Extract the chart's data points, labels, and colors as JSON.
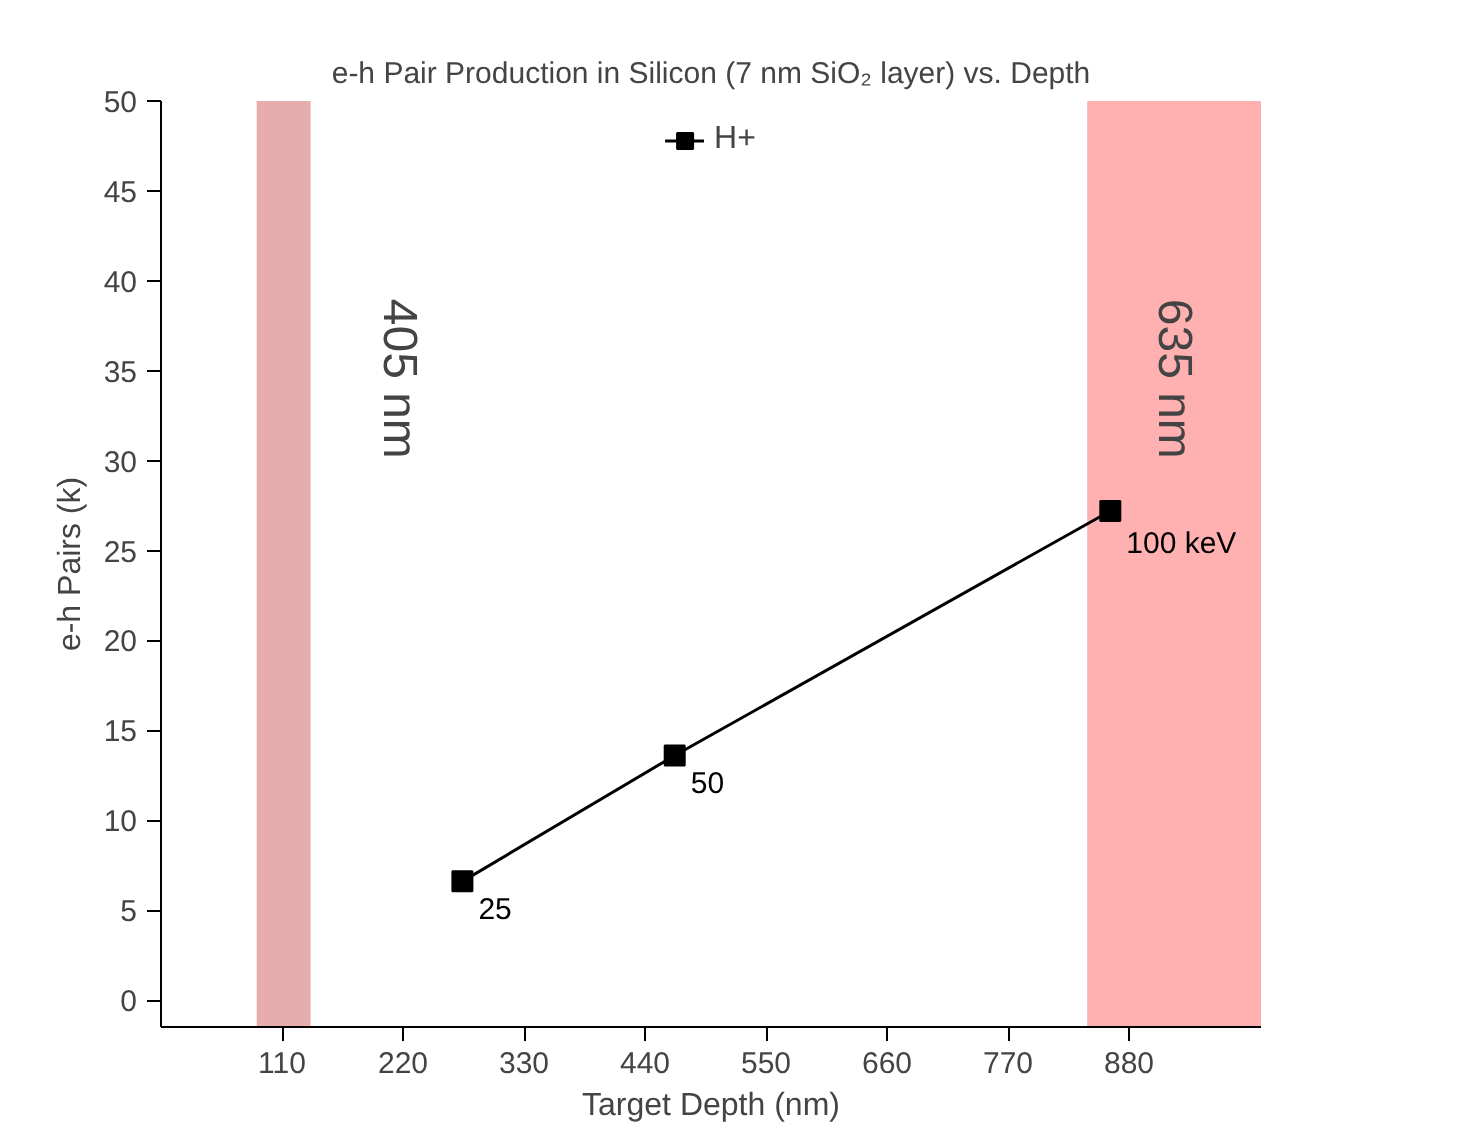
{
  "chart_data": {
    "type": "line",
    "title": "e-h Pair Production in Silicon (7 nm SiO₂ layer) vs. Depth",
    "xlabel": "Target Depth (nm)",
    "ylabel": "e-h Pairs (k)",
    "x": [
      274,
      467,
      863
    ],
    "series": [
      {
        "name": "H+",
        "color": "#000000",
        "values": [
          6.6,
          13.6,
          27.2
        ]
      }
    ],
    "annotations": [
      {
        "text": "25",
        "x": 274,
        "y": 6.6
      },
      {
        "text": "50",
        "x": 467,
        "y": 13.6
      },
      {
        "text": "100 keV",
        "x": 863,
        "y": 27.2
      }
    ],
    "xlim": [
      0,
      1000
    ],
    "ylim": [
      -1.5,
      50
    ],
    "xticks": [
      110,
      220,
      330,
      440,
      550,
      660,
      770,
      880
    ],
    "yticks": [
      0,
      5,
      10,
      15,
      20,
      25,
      30,
      35,
      40,
      45,
      50
    ],
    "bands": [
      {
        "axis": "x",
        "from": 87,
        "to": 136,
        "label": "405 nm",
        "color": "#d46a6a"
      },
      {
        "axis": "x",
        "from": 842,
        "to": 1000,
        "label": "635 nm",
        "color": "#ff7070"
      }
    ],
    "marker": "square",
    "line_style": "solid",
    "legend": "top",
    "grid": false
  }
}
